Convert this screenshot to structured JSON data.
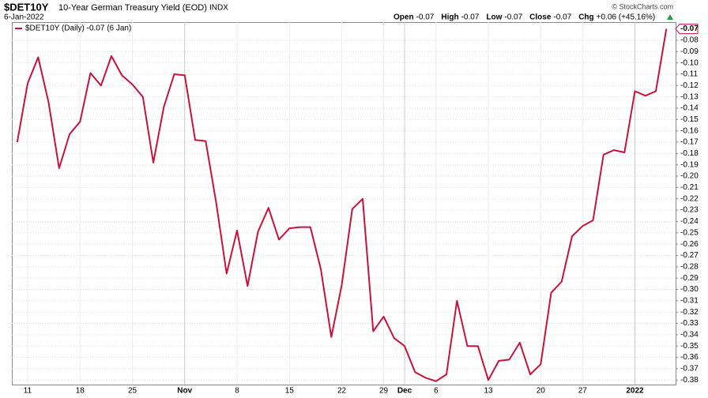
{
  "chart_data": {
    "type": "line",
    "symbol": "$DET10Y",
    "title": "10-Year German Treasury Yield (EOD)",
    "exchange": "INDX",
    "date": "6-Jan-2022",
    "credit": "© StockCharts.com",
    "stats": [
      {
        "label": "Open",
        "value": "-0.07"
      },
      {
        "label": "High",
        "value": "-0.07"
      },
      {
        "label": "Low",
        "value": "-0.07"
      },
      {
        "label": "Close",
        "value": "-0.07"
      },
      {
        "label": "Chg",
        "value": "+0.06 (+45.16%)"
      }
    ],
    "categories": [
      null,
      "11",
      null,
      null,
      null,
      null,
      "18",
      null,
      null,
      null,
      null,
      "25",
      null,
      null,
      null,
      null,
      "Nov",
      null,
      null,
      null,
      null,
      "8",
      null,
      null,
      null,
      null,
      "15",
      null,
      null,
      null,
      null,
      "22",
      null,
      null,
      null,
      "29",
      null,
      "Dec",
      null,
      null,
      "6",
      null,
      null,
      null,
      null,
      "13",
      null,
      null,
      null,
      null,
      "20",
      null,
      null,
      null,
      "27",
      null,
      null,
      null,
      null,
      "2022",
      null,
      null,
      null
    ],
    "series": [
      {
        "name": "$DET10Y (Daily) -0.07 (6 Jan)",
        "color": "#cc1139",
        "values": [
          -0.17,
          -0.118,
          -0.095,
          -0.135,
          -0.193,
          -0.163,
          -0.152,
          -0.109,
          -0.12,
          -0.094,
          -0.111,
          -0.119,
          -0.13,
          -0.188,
          -0.139,
          -0.11,
          -0.111,
          -0.168,
          -0.169,
          -0.223,
          -0.286,
          -0.248,
          -0.297,
          -0.249,
          -0.228,
          -0.256,
          -0.246,
          -0.245,
          -0.245,
          -0.282,
          -0.342,
          -0.296,
          -0.229,
          -0.22,
          -0.337,
          -0.324,
          -0.343,
          -0.35,
          -0.373,
          -0.378,
          -0.381,
          -0.375,
          -0.31,
          -0.35,
          -0.35,
          -0.38,
          -0.363,
          -0.362,
          -0.347,
          -0.375,
          -0.366,
          -0.303,
          -0.293,
          -0.253,
          -0.244,
          -0.239,
          -0.181,
          -0.177,
          -0.179,
          -0.125,
          -0.129,
          -0.125,
          -0.07
        ]
      }
    ],
    "ylim": [
      -0.384,
      -0.064
    ],
    "yticks": [
      -0.08,
      -0.09,
      -0.1,
      -0.11,
      -0.12,
      -0.13,
      -0.14,
      -0.15,
      -0.16,
      -0.17,
      -0.18,
      -0.19,
      -0.2,
      -0.21,
      -0.22,
      -0.23,
      -0.24,
      -0.25,
      -0.26,
      -0.27,
      -0.28,
      -0.29,
      -0.3,
      -0.31,
      -0.32,
      -0.33,
      -0.34,
      -0.35,
      -0.36,
      -0.37,
      -0.38
    ],
    "ytick_labels": [
      "-0.08",
      "-0.09",
      "-0.10",
      "-0.11",
      "-0.12",
      "-0.13",
      "-0.14",
      "-0.15",
      "-0.16",
      "-0.17",
      "-0.18",
      "-0.19",
      "-0.20",
      "-0.21",
      "-0.22",
      "-0.23",
      "-0.24",
      "-0.25",
      "-0.26",
      "-0.27",
      "-0.28",
      "-0.29",
      "-0.30",
      "-0.31",
      "-0.32",
      "-0.33",
      "-0.34",
      "-0.35",
      "-0.36",
      "-0.37",
      "-0.38"
    ],
    "grid": true
  }
}
